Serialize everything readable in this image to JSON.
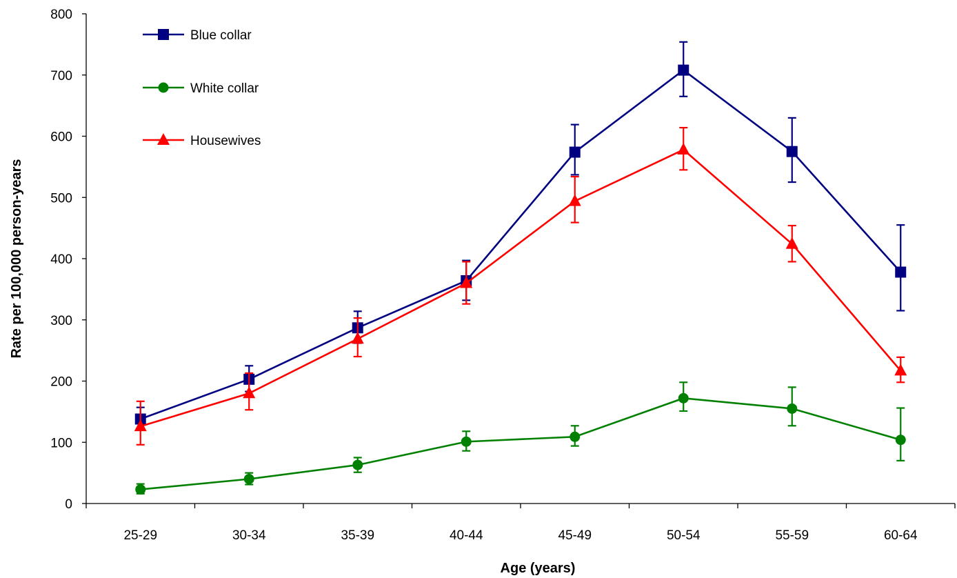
{
  "chart_data": {
    "type": "line",
    "title": "",
    "xlabel": "Age (years)",
    "ylabel": "Rate per 100,000 person-years",
    "categories": [
      "25-29",
      "30-34",
      "35-39",
      "40-44",
      "45-49",
      "50-54",
      "55-59",
      "60-64"
    ],
    "ylim": [
      0,
      800
    ],
    "yticks": [
      0,
      100,
      200,
      300,
      400,
      500,
      600,
      700,
      800
    ],
    "grid": false,
    "legend_position": "top-left",
    "error_bars": true,
    "series": [
      {
        "name": "Blue collar",
        "color": "#000080",
        "marker": "square",
        "values": [
          138,
          203,
          287,
          364,
          574,
          708,
          575,
          378
        ],
        "error_low": [
          120,
          183,
          262,
          332,
          537,
          665,
          525,
          315
        ],
        "error_high": [
          157,
          225,
          314,
          397,
          619,
          754,
          630,
          455
        ]
      },
      {
        "name": "White collar",
        "color": "#008000",
        "marker": "circle",
        "values": [
          23,
          40,
          63,
          101,
          109,
          172,
          155,
          104
        ],
        "error_low": [
          16,
          31,
          51,
          86,
          94,
          151,
          127,
          70
        ],
        "error_high": [
          32,
          50,
          75,
          118,
          127,
          198,
          190,
          156
        ]
      },
      {
        "name": "Housewives",
        "color": "#ff0000",
        "marker": "triangle",
        "values": [
          126,
          180,
          269,
          360,
          494,
          578,
          424,
          217
        ],
        "error_low": [
          96,
          153,
          240,
          326,
          459,
          545,
          395,
          198
        ],
        "error_high": [
          167,
          213,
          303,
          395,
          534,
          614,
          454,
          239
        ]
      }
    ]
  }
}
